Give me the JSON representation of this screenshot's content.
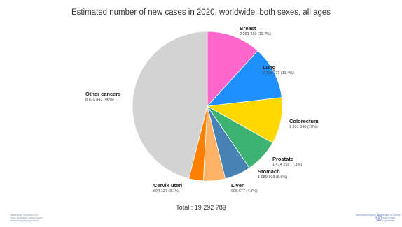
{
  "chart_data": {
    "type": "pie",
    "title": "Estimated number of new cases in 2020, worldwide, both sexes, all ages",
    "total_label": "Total : 19 292 789",
    "start_angle": 0,
    "slices": [
      {
        "name": "Breast",
        "label": "2 261 419 (11.7%)",
        "value": 2261419,
        "color": "#ff66cc"
      },
      {
        "name": "Lung",
        "label": "2 206 771 (11.4%)",
        "value": 2206771,
        "color": "#1e90ff"
      },
      {
        "name": "Colorectum",
        "label": "1 931 590 (10%)",
        "value": 1931590,
        "color": "#ffd700"
      },
      {
        "name": "Prostate",
        "label": "1 414 259 (7.3%)",
        "value": 1414259,
        "color": "#3cb371"
      },
      {
        "name": "Stomach",
        "label": "1 089 103 (5.6%)",
        "value": 1089103,
        "color": "#4682b4"
      },
      {
        "name": "Liver",
        "label": "905 677 (4.7%)",
        "value": 905677,
        "color": "#ffb366"
      },
      {
        "name": "Cervix uteri",
        "label": "604 127 (3.1%)",
        "value": 604127,
        "color": "#ff8000"
      },
      {
        "name": "Other cancers",
        "label": "8 879 843 (46%)",
        "value": 8879843,
        "color": "#d3d3d3"
      }
    ]
  },
  "footer": {
    "source_line": "Data source: Globocan 2020",
    "production_line": "Graph production: Global Cancer",
    "observatory_line": "Observatory",
    "observatory_link": "(http://gco.iarc.fr)",
    "agency_line_1": "International Agency for Research on Cancer",
    "who_line_1": "World Health",
    "who_line_2": "Organization",
    "logo_icon": "who-emblem-icon"
  }
}
